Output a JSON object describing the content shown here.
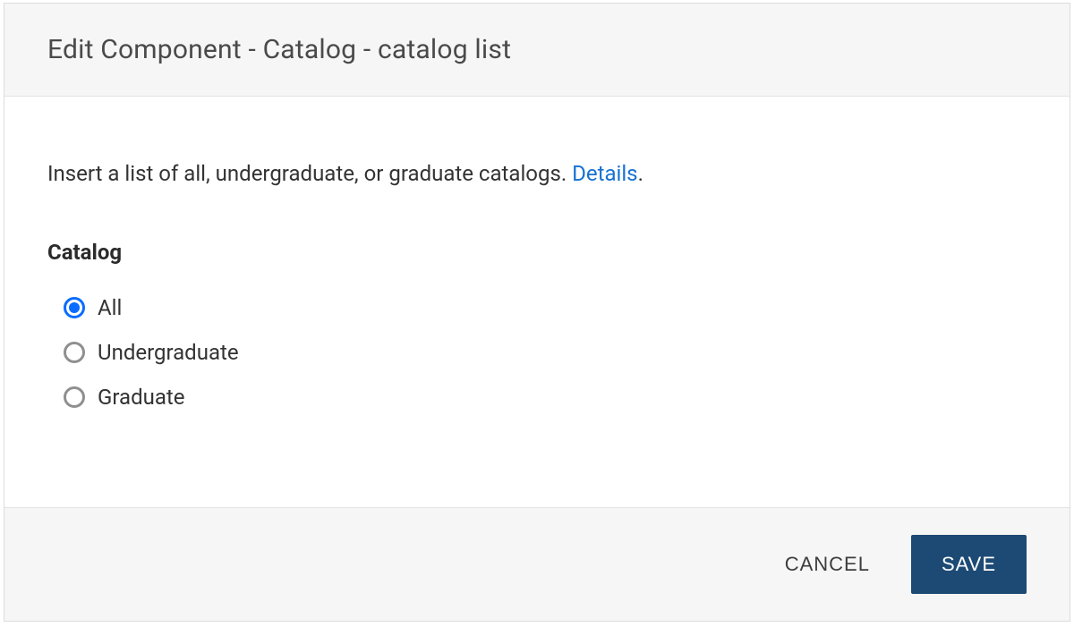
{
  "dialog": {
    "title": "Edit Component - Catalog - catalog list",
    "description_text": "Insert a list of all, undergraduate, or graduate catalogs.  ",
    "details_link": "Details",
    "description_suffix": ".",
    "section_label": "Catalog",
    "options": [
      {
        "label": "All",
        "selected": true
      },
      {
        "label": "Undergraduate",
        "selected": false
      },
      {
        "label": "Graduate",
        "selected": false
      }
    ],
    "buttons": {
      "cancel": "CANCEL",
      "save": "SAVE"
    }
  },
  "colors": {
    "header_bg": "#f6f6f6",
    "body_bg": "#ffffff",
    "border": "#dcdcdc",
    "title_text": "#4a4a4a",
    "body_text": "#333333",
    "link": "#1672d2",
    "radio_unselected": "#8f8f8f",
    "radio_selected": "#0a6cff",
    "save_bg": "#1c4a74",
    "save_text": "#ffffff",
    "cancel_text": "#3d3d3d"
  }
}
